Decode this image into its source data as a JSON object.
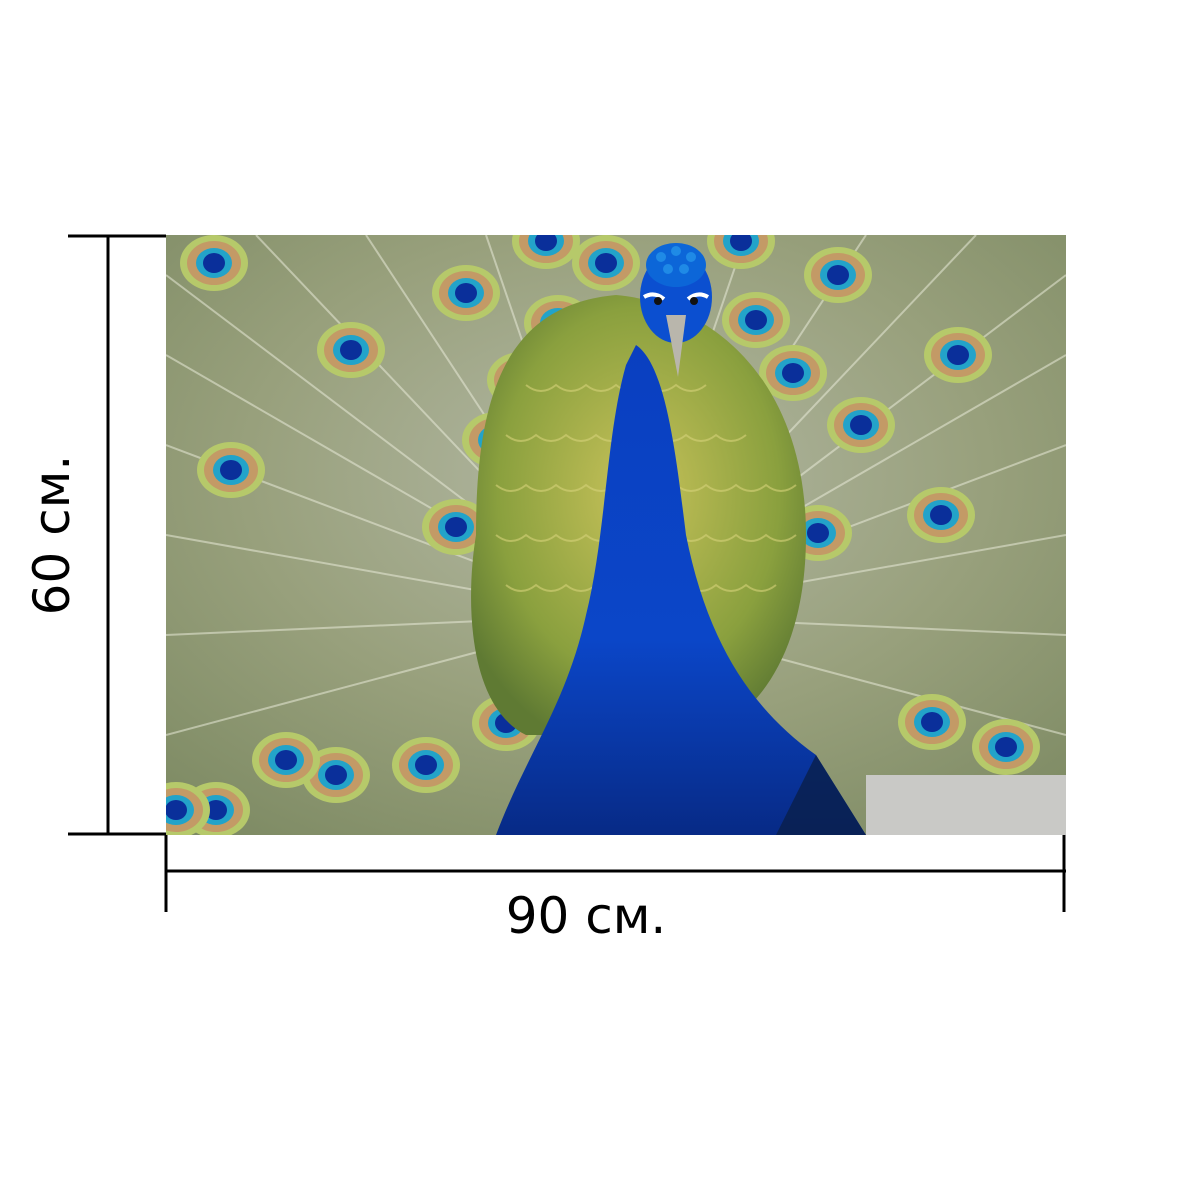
{
  "dimensions": {
    "width_label": "90 см.",
    "height_label": "60 см."
  },
  "colors": {
    "line": "#000000",
    "feather_green": "#8ea26b",
    "feather_gray": "#a8aaa2",
    "neck_blue": "#0b3fb8",
    "eye_blue": "#1a74d8",
    "eye_ring_gold": "#c9a36a",
    "eye_ring_green": "#b9cc6a"
  }
}
